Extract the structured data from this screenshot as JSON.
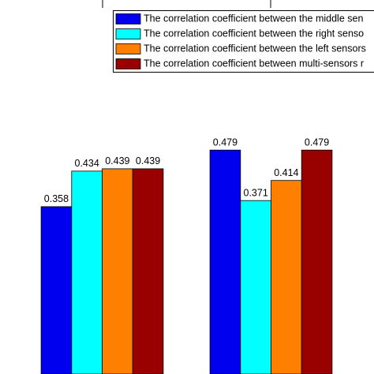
{
  "chart_data": {
    "type": "bar",
    "categories": [
      null,
      null
    ],
    "series": [
      {
        "name": "The correlation coefficient between the middle sen",
        "color": "#0000ee",
        "values": [
          0.358,
          0.479
        ]
      },
      {
        "name": "The correlation coefficient between the right senso",
        "color": "#00ffff",
        "values": [
          0.434,
          0.371
        ]
      },
      {
        "name": "The correlation coefficient between the left sensors",
        "color": "#ff8000",
        "values": [
          0.439,
          0.414
        ]
      },
      {
        "name": "The correlation coefficient between multi-sensors r",
        "color": "#990000",
        "values": [
          0.439,
          0.479
        ]
      }
    ],
    "ylim": [
      0,
      0.8
    ]
  }
}
